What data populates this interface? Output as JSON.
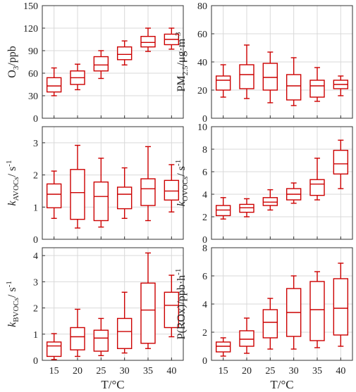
{
  "figure": {
    "box_color": "#cc0000",
    "grid": true,
    "temperatures": [
      "15",
      "20",
      "25",
      "30",
      "35",
      "40"
    ]
  },
  "chart_data": [
    {
      "type": "box",
      "ylabel": "O3/ppb",
      "xlabel": "",
      "ylim": [
        0,
        150
      ],
      "yticks": [
        0,
        30,
        60,
        90,
        120,
        150
      ],
      "ytick_labels": [
        "0",
        "30",
        "60",
        "90",
        "120",
        "150"
      ],
      "categories": [
        "15",
        "20",
        "25",
        "30",
        "35",
        "40"
      ],
      "boxes": [
        {
          "min": 30,
          "q1": 35,
          "median": 43,
          "q3": 54,
          "max": 67
        },
        {
          "min": 38,
          "q1": 45,
          "median": 54,
          "q3": 63,
          "max": 72
        },
        {
          "min": 53,
          "q1": 63,
          "median": 71,
          "q3": 82,
          "max": 90
        },
        {
          "min": 71,
          "q1": 78,
          "median": 85,
          "q3": 95,
          "max": 103
        },
        {
          "min": 89,
          "q1": 95,
          "median": 101,
          "q3": 109,
          "max": 120
        },
        {
          "min": 92,
          "q1": 98,
          "median": 105,
          "q3": 112,
          "max": 120
        }
      ]
    },
    {
      "type": "box",
      "ylabel": "PM2.5/µg·m-3",
      "xlabel": "",
      "ylim": [
        0,
        80
      ],
      "yticks": [
        0,
        20,
        40,
        60,
        80
      ],
      "ytick_labels": [
        "0",
        "20",
        "40",
        "60",
        "80"
      ],
      "categories": [
        "15",
        "20",
        "25",
        "30",
        "35",
        "40"
      ],
      "boxes": [
        {
          "min": 15,
          "q1": 20,
          "median": 27,
          "q3": 30,
          "max": 38
        },
        {
          "min": 14,
          "q1": 21,
          "median": 31,
          "q3": 38,
          "max": 52
        },
        {
          "min": 11,
          "q1": 20,
          "median": 29,
          "q3": 39,
          "max": 47
        },
        {
          "min": 9,
          "q1": 13,
          "median": 23,
          "q3": 31,
          "max": 43
        },
        {
          "min": 12,
          "q1": 15,
          "median": 23,
          "q3": 27,
          "max": 36
        },
        {
          "min": 16,
          "q1": 21,
          "median": 24,
          "q3": 27,
          "max": 30
        }
      ]
    },
    {
      "type": "box",
      "ylabel": "kAVOCs/ s-1",
      "xlabel": "",
      "ylim": [
        0,
        3.5
      ],
      "yticks": [
        0,
        1,
        2,
        3
      ],
      "ytick_labels": [
        "0",
        "1",
        "2",
        "3"
      ],
      "categories": [
        "15",
        "20",
        "25",
        "30",
        "35",
        "40"
      ],
      "boxes": [
        {
          "min": 0.65,
          "q1": 0.98,
          "median": 1.4,
          "q3": 1.72,
          "max": 2.12
        },
        {
          "min": 0.35,
          "q1": 0.62,
          "median": 1.45,
          "q3": 2.17,
          "max": 2.92
        },
        {
          "min": 0.38,
          "q1": 0.58,
          "median": 1.33,
          "q3": 1.78,
          "max": 2.52
        },
        {
          "min": 0.65,
          "q1": 0.95,
          "median": 1.4,
          "q3": 1.62,
          "max": 2.22
        },
        {
          "min": 0.58,
          "q1": 1.05,
          "median": 1.57,
          "q3": 1.88,
          "max": 2.88
        },
        {
          "min": 0.85,
          "q1": 1.22,
          "median": 1.5,
          "q3": 1.83,
          "max": 2.32
        }
      ]
    },
    {
      "type": "box",
      "ylabel": "kOVOCs/ s-1",
      "xlabel": "",
      "ylim": [
        0,
        10
      ],
      "yticks": [
        0,
        2,
        4,
        6,
        8,
        10
      ],
      "ytick_labels": [
        "0",
        "2",
        "4",
        "6",
        "8",
        "10"
      ],
      "categories": [
        "15",
        "20",
        "25",
        "30",
        "35",
        "40"
      ],
      "boxes": [
        {
          "min": 1.8,
          "q1": 2.1,
          "median": 2.6,
          "q3": 3.0,
          "max": 3.7
        },
        {
          "min": 2.0,
          "q1": 2.4,
          "median": 2.8,
          "q3": 3.1,
          "max": 3.6
        },
        {
          "min": 2.6,
          "q1": 3.0,
          "median": 3.3,
          "q3": 3.7,
          "max": 4.4
        },
        {
          "min": 3.2,
          "q1": 3.5,
          "median": 4.0,
          "q3": 4.5,
          "max": 5.0
        },
        {
          "min": 3.5,
          "q1": 3.9,
          "median": 4.9,
          "q3": 5.3,
          "max": 7.2
        },
        {
          "min": 4.5,
          "q1": 5.8,
          "median": 6.7,
          "q3": 7.9,
          "max": 8.8
        }
      ]
    },
    {
      "type": "box",
      "ylabel": "kBVOCs/ s-1",
      "xlabel": "T/°C",
      "ylim": [
        0,
        4.3
      ],
      "yticks": [
        0,
        1,
        2,
        3,
        4
      ],
      "ytick_labels": [
        "0",
        "1",
        "2",
        "3",
        "4"
      ],
      "categories": [
        "15",
        "20",
        "25",
        "30",
        "35",
        "40"
      ],
      "boxes": [
        {
          "min": 0.03,
          "q1": 0.15,
          "median": 0.55,
          "q3": 0.7,
          "max": 1.02
        },
        {
          "min": 0.15,
          "q1": 0.4,
          "median": 0.9,
          "q3": 1.25,
          "max": 1.95
        },
        {
          "min": 0.18,
          "q1": 0.35,
          "median": 0.85,
          "q3": 1.15,
          "max": 1.6
        },
        {
          "min": 0.28,
          "q1": 0.45,
          "median": 1.1,
          "q3": 1.6,
          "max": 2.6
        },
        {
          "min": 0.45,
          "q1": 0.65,
          "median": 1.92,
          "q3": 2.95,
          "max": 4.1
        },
        {
          "min": 0.9,
          "q1": 1.25,
          "median": 2.1,
          "q3": 2.6,
          "max": 3.25
        }
      ]
    },
    {
      "type": "box",
      "ylabel": "P(ROx)/ppb·h-1",
      "xlabel": "T/°C",
      "ylim": [
        0,
        8
      ],
      "yticks": [
        0,
        2,
        4,
        6,
        8
      ],
      "ytick_labels": [
        "0",
        "2",
        "4",
        "6",
        "8"
      ],
      "categories": [
        "15",
        "20",
        "25",
        "30",
        "35",
        "40"
      ],
      "boxes": [
        {
          "min": 0.3,
          "q1": 0.6,
          "median": 1.0,
          "q3": 1.3,
          "max": 1.6
        },
        {
          "min": 0.5,
          "q1": 1.0,
          "median": 1.5,
          "q3": 2.1,
          "max": 3.0
        },
        {
          "min": 0.8,
          "q1": 1.6,
          "median": 2.7,
          "q3": 3.6,
          "max": 4.4
        },
        {
          "min": 0.8,
          "q1": 1.7,
          "median": 3.4,
          "q3": 5.1,
          "max": 6.0
        },
        {
          "min": 0.9,
          "q1": 1.4,
          "median": 3.6,
          "q3": 5.6,
          "max": 6.3
        },
        {
          "min": 1.0,
          "q1": 1.8,
          "median": 3.7,
          "q3": 5.8,
          "max": 6.9
        }
      ]
    }
  ]
}
